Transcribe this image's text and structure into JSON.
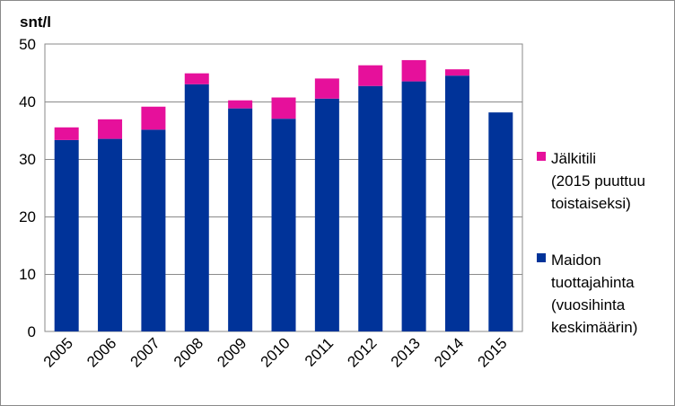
{
  "chart_data": {
    "type": "bar",
    "stacked": true,
    "title": "",
    "unit_label": "snt/l",
    "xlabel": "",
    "ylabel": "",
    "ylim": [
      0,
      50
    ],
    "yticks": [
      "0",
      "10",
      "20",
      "30",
      "40",
      "50"
    ],
    "grid": "horizontal",
    "legend_position": "right",
    "categories": [
      "2005",
      "2006",
      "2007",
      "2008",
      "2009",
      "2010",
      "2011",
      "2012",
      "2013",
      "2014",
      "2015"
    ],
    "series": [
      {
        "name": "Maidon tuottajahinta (vuosihinta keskimäärin)",
        "legend_lines": [
          "Maidon",
          "tuottajahinta",
          "(vuosihinta",
          "keskimäärin)"
        ],
        "color": "#003399",
        "values": [
          33.3,
          33.5,
          35.1,
          43.0,
          38.8,
          37.0,
          40.5,
          42.7,
          43.5,
          44.5,
          38.1
        ]
      },
      {
        "name": "Jälkitili (2015 puuttuu toistaiseksi)",
        "legend_lines": [
          "Jälkitili",
          "(2015 puuttuu",
          "toistaiseksi)"
        ],
        "color": "#e6109b",
        "values": [
          2.2,
          3.4,
          4.0,
          1.9,
          1.4,
          3.7,
          3.5,
          3.6,
          3.7,
          1.1,
          0
        ]
      }
    ]
  }
}
